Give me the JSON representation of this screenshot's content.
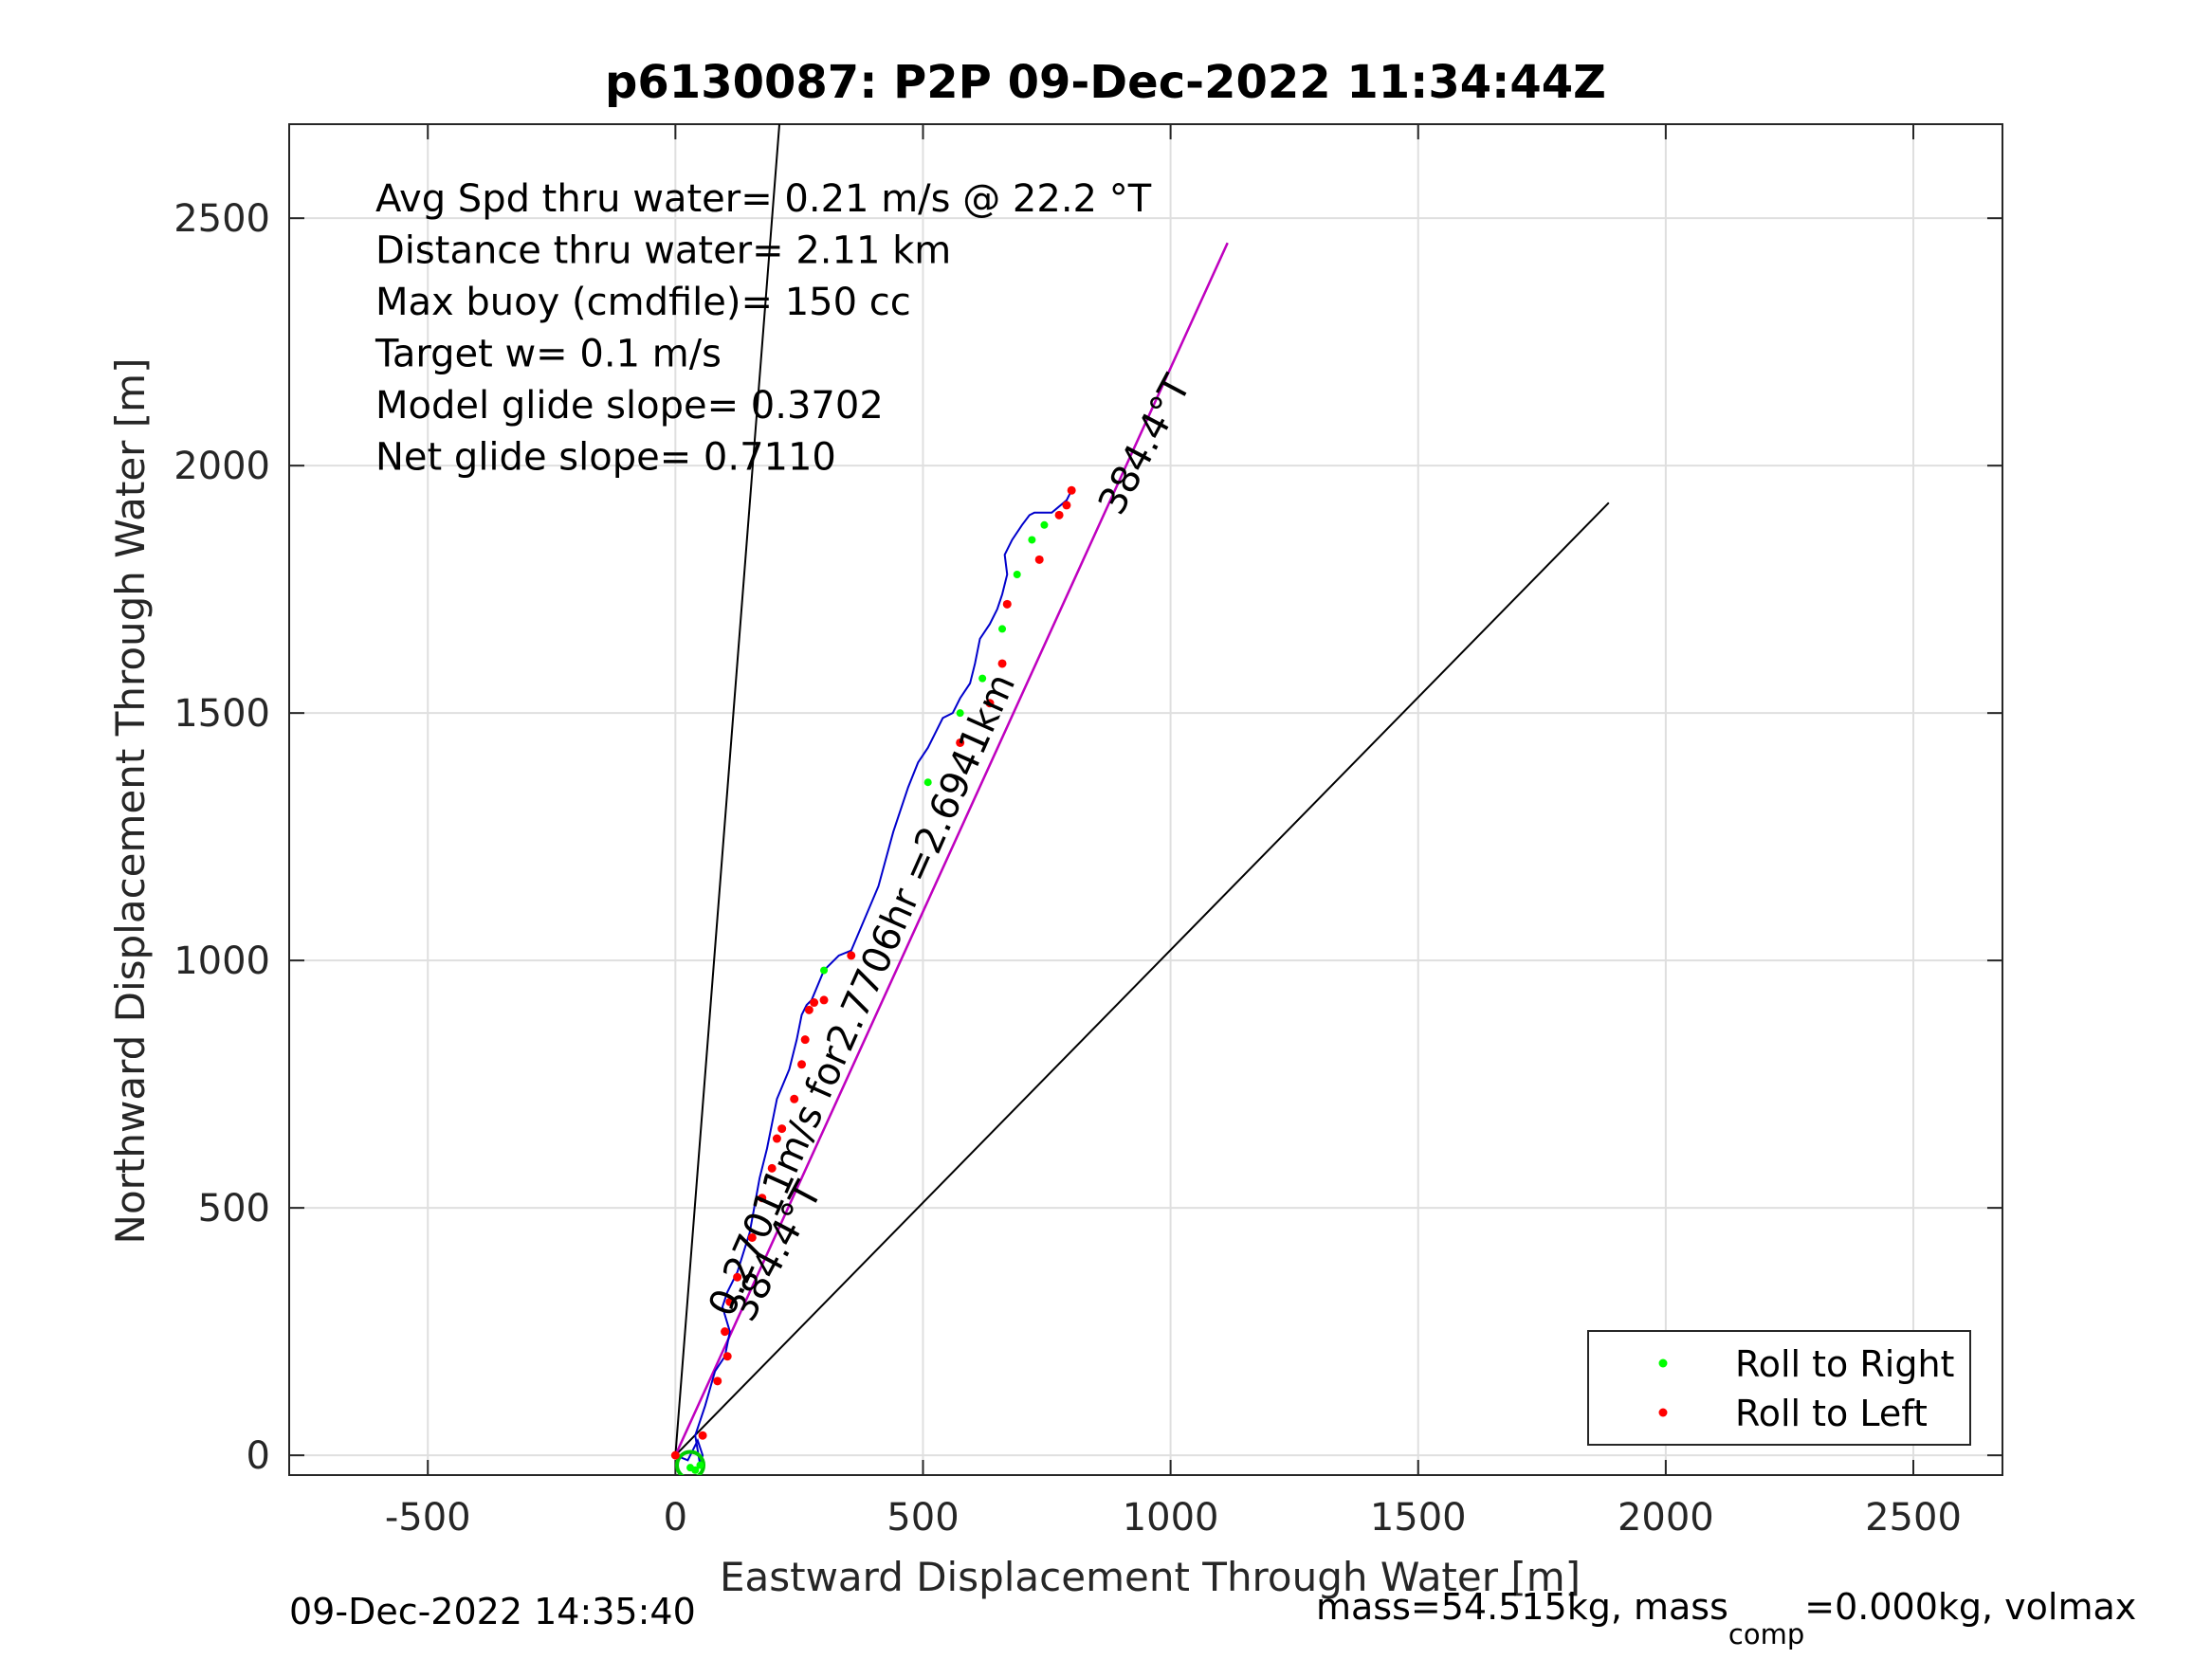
{
  "chart_data": {
    "type": "line",
    "title": "p6130087: P2P 09-Dec-2022 11:34:44Z",
    "xlabel": "Eastward Displacement Through Water [m]",
    "ylabel": "Northward Displacement Through Water [m]",
    "xlim": [
      -780,
      2680
    ],
    "ylim": [
      -40,
      2690
    ],
    "xticks": [
      -500,
      0,
      500,
      1000,
      1500,
      2000,
      2500
    ],
    "yticks": [
      0,
      500,
      1000,
      1500,
      2000,
      2500
    ],
    "grid": true,
    "legend_placement": "bottom-right",
    "legend": [
      {
        "label": "Roll to Right",
        "color": "#00ff00"
      },
      {
        "label": "Roll to Left",
        "color": "#ff0000"
      }
    ],
    "info_lines": [
      "Avg Spd thru water=  0.21 m/s @  22.2 °T",
      "Distance thru water=  2.11 km",
      "Max buoy (cmdfile)= 150 cc",
      "Target w= 0.1 m/s",
      "Model glide slope= 0.3702",
      "Net glide slope= 0.7110"
    ],
    "reference_lines": [
      {
        "x": [
          0,
          210
        ],
        "y": [
          0,
          2690
        ]
      },
      {
        "x": [
          0,
          1115
        ],
        "y": [
          0,
          2450
        ]
      },
      {
        "x": [
          0,
          1885
        ],
        "y": [
          0,
          1925
        ]
      }
    ],
    "heading_line": {
      "x": [
        0,
        1115
      ],
      "y": [
        0,
        2450
      ],
      "color": "#c000c0"
    },
    "line_labels": [
      {
        "text": "384.4°T",
        "x": 970,
        "y": 2030,
        "angle": -62
      },
      {
        "text": "0.27011m/s for2.7706hr =2.6941km",
        "x": 400,
        "y": 920,
        "angle": -66
      },
      {
        "text": "384.4°T",
        "x": 225,
        "y": 400,
        "angle": -62
      }
    ],
    "track": {
      "color": "#0000cc",
      "x": [
        0,
        25,
        45,
        55,
        50,
        40,
        60,
        80,
        100,
        110,
        95,
        105,
        125,
        150,
        170,
        185,
        195,
        205,
        230,
        245,
        255,
        265,
        275,
        300,
        330,
        355,
        410,
        440,
        470,
        490,
        510,
        525,
        540,
        560,
        575,
        595,
        605,
        615,
        635,
        650,
        660,
        670,
        665,
        680,
        700,
        715,
        725,
        730,
        740,
        760,
        790,
        800
      ],
      "y": [
        0,
        -10,
        30,
        0,
        -20,
        40,
        100,
        170,
        200,
        250,
        300,
        330,
        370,
        450,
        560,
        620,
        670,
        720,
        780,
        840,
        890,
        910,
        920,
        980,
        1010,
        1020,
        1150,
        1260,
        1350,
        1400,
        1430,
        1460,
        1490,
        1500,
        1530,
        1560,
        1600,
        1650,
        1680,
        1710,
        1740,
        1780,
        1820,
        1850,
        1880,
        1900,
        1905,
        1905,
        1905,
        1905,
        1930,
        1950
      ]
    },
    "roll_right": {
      "x": [
        30,
        40,
        50,
        300,
        510,
        575,
        620,
        660,
        690,
        720,
        745
      ],
      "y": [
        -25,
        -30,
        -20,
        980,
        1360,
        1500,
        1570,
        1670,
        1780,
        1850,
        1880
      ]
    },
    "roll_left": {
      "x": [
        0,
        55,
        85,
        105,
        100,
        110,
        125,
        155,
        175,
        195,
        205,
        215,
        240,
        255,
        262,
        270,
        280,
        300,
        355,
        575,
        635,
        660,
        670,
        735,
        775,
        790,
        800
      ],
      "y": [
        0,
        40,
        150,
        200,
        250,
        310,
        360,
        440,
        520,
        580,
        640,
        660,
        720,
        790,
        840,
        900,
        915,
        920,
        1010,
        1440,
        1520,
        1600,
        1720,
        1810,
        1900,
        1920,
        1950
      ]
    },
    "footer_left": "09-Dec-2022 14:35:40",
    "footer_right_main": "mass=54.515kg, mass",
    "footer_right_sub": "comp",
    "footer_right_tail": "=0.000kg, volmax"
  }
}
